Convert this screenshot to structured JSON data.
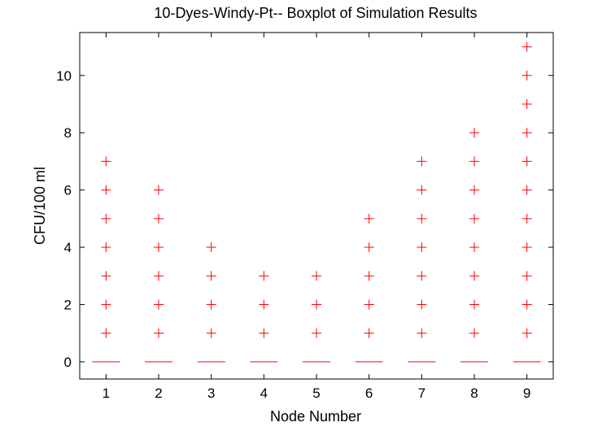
{
  "chart_data": {
    "type": "boxplot",
    "title": "10-Dyes-Windy-Pt-- Boxplot of Simulation Results",
    "xlabel": "Node Number",
    "ylabel": "CFU/100 ml",
    "xlim": [
      0.5,
      9.5
    ],
    "ylim": [
      -0.6,
      11.5
    ],
    "x_ticks": [
      "1",
      "2",
      "3",
      "4",
      "5",
      "6",
      "7",
      "8",
      "9"
    ],
    "y_ticks": [
      0,
      2,
      4,
      6,
      8,
      10
    ],
    "grid": false,
    "median_color": "#ff0000",
    "outlier_color": "#ff0000",
    "nodes": [
      {
        "node": "1",
        "median": 0,
        "outliers": [
          1,
          2,
          3,
          4,
          5,
          6,
          7
        ]
      },
      {
        "node": "2",
        "median": 0,
        "outliers": [
          1,
          2,
          3,
          4,
          5,
          6
        ]
      },
      {
        "node": "3",
        "median": 0,
        "outliers": [
          1,
          2,
          3,
          4
        ]
      },
      {
        "node": "4",
        "median": 0,
        "outliers": [
          1,
          2,
          3
        ]
      },
      {
        "node": "5",
        "median": 0,
        "outliers": [
          1,
          2,
          3
        ]
      },
      {
        "node": "6",
        "median": 0,
        "outliers": [
          1,
          2,
          3,
          4,
          5
        ]
      },
      {
        "node": "7",
        "median": 0,
        "outliers": [
          1,
          2,
          3,
          4,
          5,
          6,
          7
        ]
      },
      {
        "node": "8",
        "median": 0,
        "outliers": [
          1,
          2,
          3,
          4,
          5,
          6,
          7,
          8
        ]
      },
      {
        "node": "9",
        "median": 0,
        "outliers": [
          1,
          2,
          3,
          4,
          5,
          6,
          7,
          8,
          9,
          10,
          11
        ]
      }
    ]
  }
}
